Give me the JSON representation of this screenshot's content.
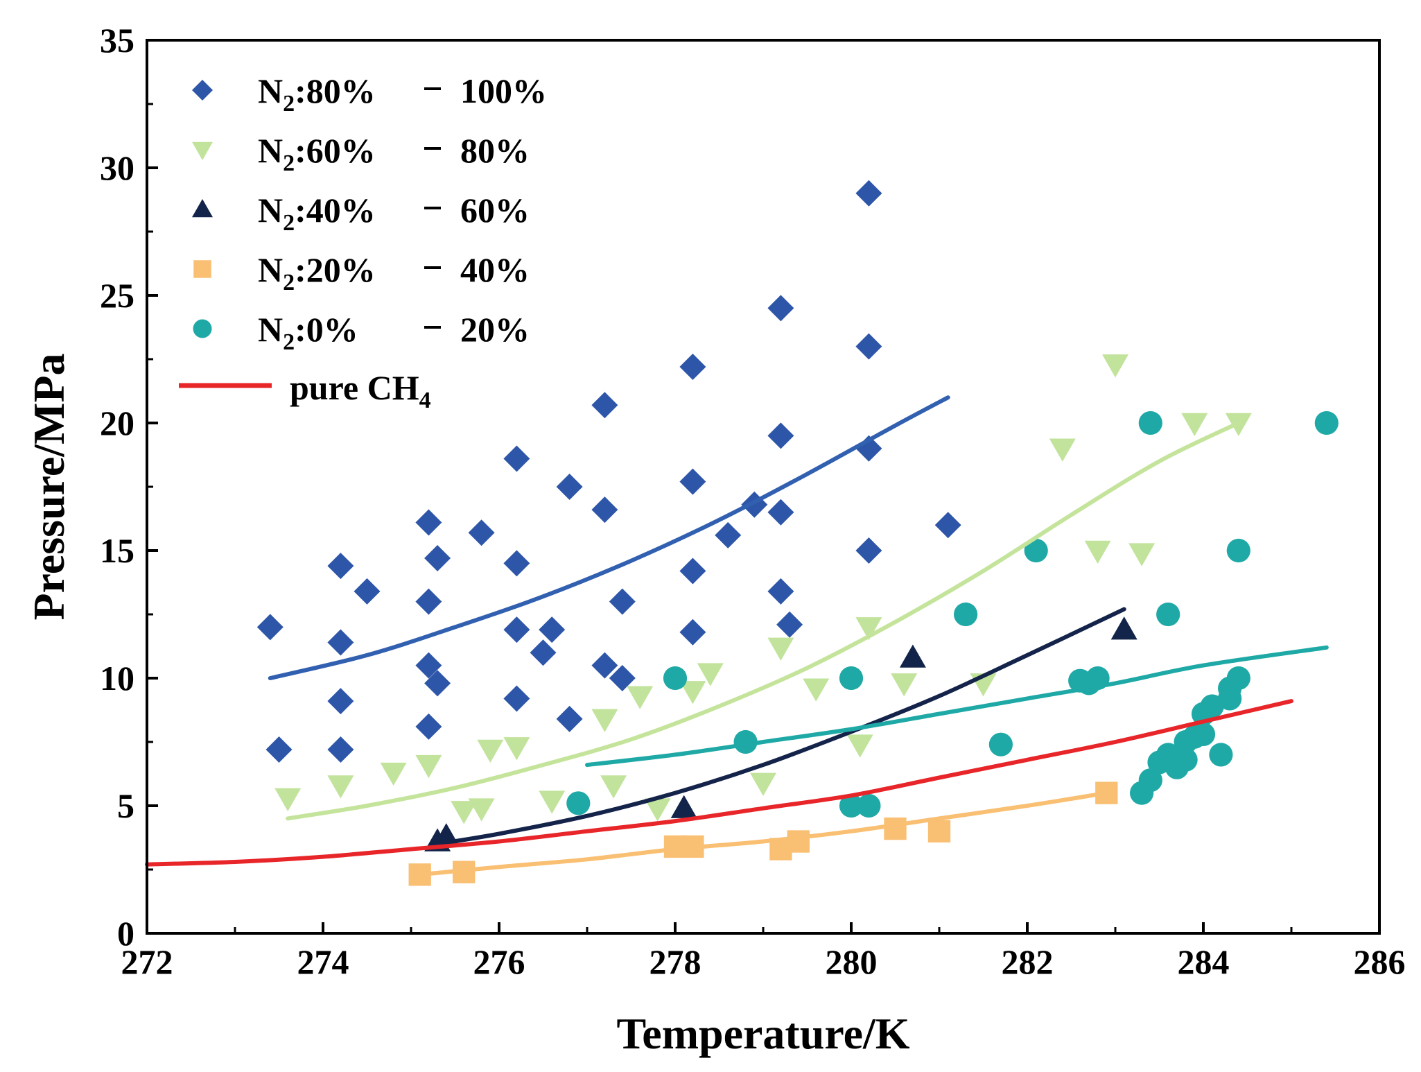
{
  "chart_data": {
    "type": "scatter",
    "title": "",
    "xlabel": "Temperature/K",
    "ylabel": "Pressure/MPa",
    "xlim": [
      272,
      286
    ],
    "ylim": [
      0,
      35
    ],
    "xticks": [
      272,
      274,
      276,
      278,
      280,
      282,
      284,
      286
    ],
    "yticks": [
      0,
      5,
      10,
      15,
      20,
      25,
      30,
      35
    ],
    "grid": false,
    "legend_position": "top-left",
    "series": [
      {
        "id": "n2_80",
        "name_prefix": "N",
        "name_sub": "2",
        "name_rest": ":80%",
        "range_label": "100%",
        "marker": "diamond",
        "color": "#2E56A8",
        "line_color": "#3160B0",
        "points": [
          [
            273.4,
            12.0
          ],
          [
            273.5,
            7.2
          ],
          [
            274.2,
            14.4
          ],
          [
            274.2,
            11.4
          ],
          [
            274.2,
            9.1
          ],
          [
            274.2,
            7.2
          ],
          [
            274.5,
            13.4
          ],
          [
            275.2,
            16.1
          ],
          [
            275.2,
            13.0
          ],
          [
            275.2,
            10.5
          ],
          [
            275.2,
            8.1
          ],
          [
            275.3,
            14.7
          ],
          [
            275.3,
            9.8
          ],
          [
            275.8,
            15.7
          ],
          [
            276.2,
            18.6
          ],
          [
            276.2,
            14.5
          ],
          [
            276.2,
            11.9
          ],
          [
            276.2,
            9.2
          ],
          [
            276.5,
            11.0
          ],
          [
            276.6,
            11.9
          ],
          [
            276.8,
            17.5
          ],
          [
            276.8,
            8.4
          ],
          [
            277.2,
            20.7
          ],
          [
            277.2,
            16.6
          ],
          [
            277.2,
            10.5
          ],
          [
            277.4,
            13.0
          ],
          [
            277.4,
            10.0
          ],
          [
            278.2,
            22.2
          ],
          [
            278.2,
            17.7
          ],
          [
            278.2,
            14.2
          ],
          [
            278.2,
            11.8
          ],
          [
            278.6,
            15.6
          ],
          [
            278.9,
            16.8
          ],
          [
            279.2,
            24.5
          ],
          [
            279.2,
            19.5
          ],
          [
            279.2,
            16.5
          ],
          [
            279.2,
            13.4
          ],
          [
            279.3,
            12.1
          ],
          [
            280.2,
            29.0
          ],
          [
            280.2,
            23.0
          ],
          [
            280.2,
            19.0
          ],
          [
            280.2,
            15.0
          ],
          [
            281.1,
            16.0
          ]
        ],
        "curve": [
          [
            273.4,
            10.0
          ],
          [
            274.5,
            10.9
          ],
          [
            275.5,
            12.0
          ],
          [
            276.5,
            13.2
          ],
          [
            277.5,
            14.6
          ],
          [
            278.5,
            16.2
          ],
          [
            279.5,
            18.0
          ],
          [
            280.5,
            19.9
          ],
          [
            281.1,
            21.0
          ]
        ]
      },
      {
        "id": "n2_60",
        "name_prefix": "N",
        "name_sub": "2",
        "name_rest": ":60%",
        "range_label": "80%",
        "marker": "triangle-down",
        "color": "#C2E39B",
        "line_color": "#C5E49B",
        "points": [
          [
            273.6,
            5.3
          ],
          [
            274.2,
            5.8
          ],
          [
            274.8,
            6.3
          ],
          [
            275.2,
            6.6
          ],
          [
            275.6,
            4.8
          ],
          [
            275.8,
            4.9
          ],
          [
            275.9,
            7.2
          ],
          [
            276.2,
            7.3
          ],
          [
            276.6,
            5.2
          ],
          [
            277.2,
            8.4
          ],
          [
            277.3,
            5.8
          ],
          [
            277.6,
            9.3
          ],
          [
            277.8,
            4.9
          ],
          [
            278.2,
            9.5
          ],
          [
            278.4,
            10.2
          ],
          [
            279.2,
            11.2
          ],
          [
            279.0,
            5.9
          ],
          [
            279.6,
            9.6
          ],
          [
            280.2,
            12.0
          ],
          [
            280.1,
            7.4
          ],
          [
            280.6,
            9.8
          ],
          [
            281.5,
            9.8
          ],
          [
            282.4,
            19.0
          ],
          [
            282.8,
            15.0
          ],
          [
            283.0,
            22.3
          ],
          [
            283.3,
            14.9
          ],
          [
            283.9,
            20.0
          ],
          [
            284.4,
            20.0
          ]
        ],
        "curve": [
          [
            273.6,
            4.5
          ],
          [
            274.5,
            5.0
          ],
          [
            275.5,
            5.7
          ],
          [
            276.5,
            6.6
          ],
          [
            277.5,
            7.6
          ],
          [
            278.5,
            8.9
          ],
          [
            279.5,
            10.4
          ],
          [
            280.5,
            12.2
          ],
          [
            281.5,
            14.2
          ],
          [
            282.5,
            16.4
          ],
          [
            283.5,
            18.5
          ],
          [
            284.4,
            20.0
          ]
        ]
      },
      {
        "id": "n2_40",
        "name_prefix": "N",
        "name_sub": "2",
        "name_rest": ":40%",
        "range_label": "60%",
        "marker": "triangle-up",
        "color": "#12244A",
        "line_color": "#14234A",
        "points": [
          [
            275.3,
            3.6
          ],
          [
            275.4,
            3.8
          ],
          [
            278.1,
            4.9
          ],
          [
            280.7,
            10.8
          ],
          [
            283.1,
            11.9
          ]
        ],
        "curve": [
          [
            275.3,
            3.5
          ],
          [
            276.0,
            3.9
          ],
          [
            277.0,
            4.6
          ],
          [
            278.0,
            5.5
          ],
          [
            279.0,
            6.6
          ],
          [
            280.0,
            7.9
          ],
          [
            281.0,
            9.3
          ],
          [
            282.0,
            10.9
          ],
          [
            283.1,
            12.7
          ]
        ]
      },
      {
        "id": "n2_20",
        "name_prefix": "N",
        "name_sub": "2",
        "name_rest": ":20%",
        "range_label": "40%",
        "marker": "square",
        "color": "#F9BF72",
        "line_color": "#F9BF72",
        "points": [
          [
            275.1,
            2.3
          ],
          [
            275.6,
            2.4
          ],
          [
            278.0,
            3.4
          ],
          [
            278.2,
            3.4
          ],
          [
            279.2,
            3.3
          ],
          [
            279.4,
            3.6
          ],
          [
            280.5,
            4.1
          ],
          [
            281.0,
            4.0
          ],
          [
            282.9,
            5.5
          ]
        ],
        "curve": [
          [
            275.1,
            2.3
          ],
          [
            276.0,
            2.6
          ],
          [
            277.0,
            2.9
          ],
          [
            278.0,
            3.3
          ],
          [
            279.0,
            3.6
          ],
          [
            280.0,
            4.0
          ],
          [
            281.0,
            4.5
          ],
          [
            282.0,
            5.0
          ],
          [
            282.9,
            5.5
          ]
        ]
      },
      {
        "id": "n2_0",
        "name_prefix": "N",
        "name_sub": "2",
        "name_rest": ":0%",
        "range_label": "20%",
        "marker": "circle",
        "color": "#1FA9A6",
        "line_color": "#1FA9A6",
        "points": [
          [
            276.9,
            5.1
          ],
          [
            278.0,
            10.0
          ],
          [
            278.8,
            7.5
          ],
          [
            280.0,
            10.0
          ],
          [
            280.0,
            5.0
          ],
          [
            280.2,
            5.0
          ],
          [
            281.3,
            12.5
          ],
          [
            281.7,
            7.4
          ],
          [
            282.1,
            15.0
          ],
          [
            282.6,
            9.9
          ],
          [
            282.7,
            9.8
          ],
          [
            282.8,
            10.0
          ],
          [
            283.4,
            20.0
          ],
          [
            283.3,
            5.5
          ],
          [
            283.4,
            6.0
          ],
          [
            283.5,
            6.7
          ],
          [
            283.6,
            12.5
          ],
          [
            283.6,
            7.0
          ],
          [
            283.7,
            6.5
          ],
          [
            283.8,
            6.8
          ],
          [
            283.8,
            7.5
          ],
          [
            283.9,
            7.7
          ],
          [
            284.0,
            8.6
          ],
          [
            284.0,
            7.8
          ],
          [
            284.1,
            8.9
          ],
          [
            284.2,
            7.0
          ],
          [
            284.3,
            9.2
          ],
          [
            284.3,
            9.6
          ],
          [
            284.4,
            10.0
          ],
          [
            284.4,
            15.0
          ],
          [
            285.4,
            20.0
          ]
        ],
        "curve": [
          [
            277.0,
            6.6
          ],
          [
            278.0,
            7.0
          ],
          [
            279.0,
            7.5
          ],
          [
            280.0,
            8.0
          ],
          [
            281.0,
            8.6
          ],
          [
            282.0,
            9.2
          ],
          [
            283.0,
            9.8
          ],
          [
            284.0,
            10.5
          ],
          [
            285.4,
            11.2
          ]
        ]
      }
    ],
    "reference_curve": {
      "name_prefix": "pure CH",
      "name_sub": "4",
      "color": "#E8262A",
      "points": [
        [
          272.0,
          2.7
        ],
        [
          273.0,
          2.8
        ],
        [
          274.0,
          3.0
        ],
        [
          275.0,
          3.3
        ],
        [
          276.0,
          3.6
        ],
        [
          277.0,
          4.0
        ],
        [
          278.0,
          4.4
        ],
        [
          279.0,
          4.9
        ],
        [
          280.0,
          5.4
        ],
        [
          281.0,
          6.1
        ],
        [
          282.0,
          6.8
        ],
        [
          283.0,
          7.5
        ],
        [
          284.0,
          8.3
        ],
        [
          285.0,
          9.1
        ]
      ]
    }
  }
}
